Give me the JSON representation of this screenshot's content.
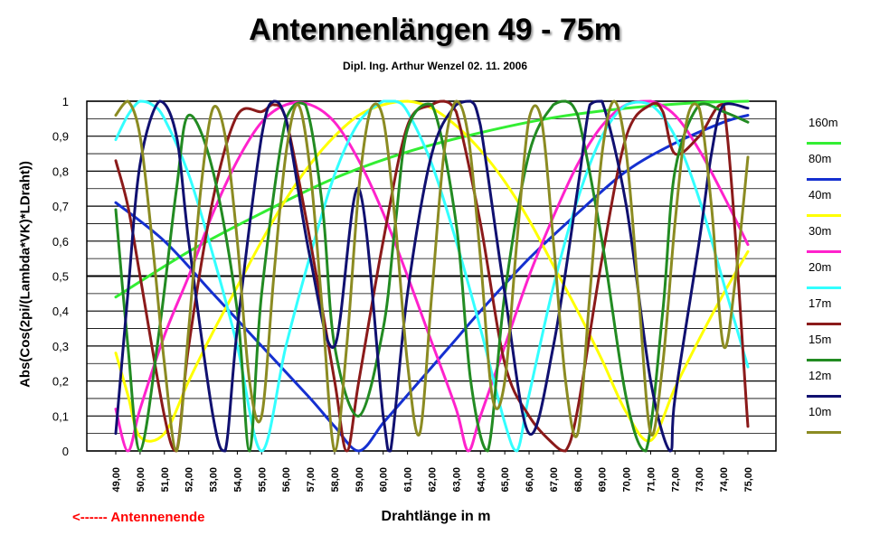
{
  "chart_data": {
    "type": "line",
    "title": "Antennenlängen 49 - 75m",
    "subtitle": "Dipl. Ing. Arthur Wenzel  02. 11. 2006",
    "xlabel": "Drahtlänge in m",
    "ylabel": "Abs(Cos(2pi/(Lambda*VK)*LDraht))",
    "note": "<------  Antennenende",
    "xlim": [
      49,
      75
    ],
    "ylim": [
      0,
      1
    ],
    "x_ticks": [
      "49,00",
      "50,00",
      "51,00",
      "52,00",
      "53,00",
      "54,00",
      "55,00",
      "56,00",
      "57,00",
      "58,00",
      "59,00",
      "60,00",
      "61,00",
      "62,00",
      "63,00",
      "64,00",
      "65,00",
      "66,00",
      "67,00",
      "68,00",
      "69,00",
      "70,00",
      "71,00",
      "72,00",
      "73,00",
      "74,00",
      "75,00"
    ],
    "y_ticks": [
      "0",
      "0,1",
      "0,2",
      "0,3",
      "0,4",
      "0,5",
      "0,6",
      "0,7",
      "0,8",
      "0,9",
      "1"
    ],
    "grid": true,
    "legend_position": "right",
    "series": [
      {
        "name": "160m",
        "color": "#33ee33",
        "x": [
          49,
          52,
          55,
          58,
          61,
          64,
          67,
          70,
          73,
          75
        ],
        "y": [
          0.44,
          0.57,
          0.68,
          0.78,
          0.855,
          0.91,
          0.953,
          0.98,
          0.996,
          1.0
        ]
      },
      {
        "name": "80m",
        "color": "#1530d0",
        "x": [
          49,
          51,
          53,
          55,
          57,
          58,
          59,
          60,
          61,
          62,
          63,
          64,
          66,
          68,
          70,
          72,
          74,
          75
        ],
        "y": [
          0.71,
          0.6,
          0.45,
          0.3,
          0.15,
          0.07,
          0.0,
          0.08,
          0.16,
          0.24,
          0.32,
          0.4,
          0.55,
          0.68,
          0.8,
          0.88,
          0.94,
          0.96
        ]
      },
      {
        "name": "40m",
        "color": "#ffff00",
        "x": [
          49,
          49.5,
          50,
          51,
          52,
          53,
          54,
          55,
          56,
          57,
          58,
          59,
          60,
          61,
          62,
          63,
          64,
          65,
          66,
          67,
          68,
          69,
          70,
          71,
          72,
          73,
          74,
          75
        ],
        "y": [
          0.28,
          0.16,
          0.04,
          0.05,
          0.2,
          0.34,
          0.47,
          0.6,
          0.72,
          0.82,
          0.9,
          0.96,
          0.99,
          1.0,
          0.98,
          0.93,
          0.86,
          0.77,
          0.66,
          0.53,
          0.4,
          0.26,
          0.11,
          0.03,
          0.18,
          0.32,
          0.45,
          0.57
        ]
      },
      {
        "name": "30m",
        "color": "#ff22cc",
        "x": [
          49,
          49.5,
          50,
          51,
          52,
          53,
          54,
          55,
          56,
          57,
          58,
          59,
          60,
          61,
          62,
          63,
          63.5,
          64,
          65,
          66,
          67,
          68,
          69,
          70,
          71,
          72,
          73,
          74,
          75
        ],
        "y": [
          0.12,
          0.0,
          0.12,
          0.33,
          0.5,
          0.68,
          0.83,
          0.94,
          0.99,
          0.99,
          0.94,
          0.83,
          0.68,
          0.5,
          0.31,
          0.12,
          0.0,
          0.1,
          0.3,
          0.5,
          0.67,
          0.82,
          0.93,
          0.99,
          1.0,
          0.96,
          0.86,
          0.73,
          0.59
        ]
      },
      {
        "name": "20m",
        "color": "#33ffff",
        "x": [
          49,
          49.5,
          50,
          50.5,
          51,
          52,
          53,
          54,
          55,
          56,
          57,
          58,
          59,
          60,
          60.5,
          61,
          62,
          63,
          64,
          65,
          65.5,
          66,
          67,
          68,
          69,
          70,
          71,
          72,
          73,
          74,
          75
        ],
        "y": [
          0.89,
          0.96,
          1.0,
          0.99,
          0.95,
          0.79,
          0.56,
          0.3,
          0.0,
          0.3,
          0.56,
          0.79,
          0.94,
          1.0,
          1.0,
          0.97,
          0.82,
          0.6,
          0.35,
          0.08,
          0.0,
          0.16,
          0.47,
          0.72,
          0.9,
          0.99,
          0.99,
          0.9,
          0.72,
          0.48,
          0.24
        ]
      },
      {
        "name": "17m",
        "color": "#8b1a1a",
        "x": [
          49,
          49.5,
          50,
          51,
          51.5,
          52,
          53,
          54,
          55,
          55.5,
          56,
          57,
          58,
          58.5,
          59,
          60,
          61,
          62,
          62.5,
          63,
          64,
          65,
          66,
          67,
          67.5,
          68,
          69,
          70,
          71,
          71.5,
          72,
          73,
          74,
          75
        ],
        "y": [
          0.83,
          0.7,
          0.5,
          0.1,
          0.0,
          0.3,
          0.72,
          0.96,
          0.97,
          0.99,
          0.95,
          0.6,
          0.2,
          0.0,
          0.2,
          0.6,
          0.93,
          0.99,
          1.0,
          0.97,
          0.65,
          0.25,
          0.1,
          0.02,
          0.0,
          0.12,
          0.55,
          0.9,
          0.99,
          0.97,
          0.85,
          0.9,
          0.99,
          0.07
        ]
      },
      {
        "name": "15m",
        "color": "#228b22",
        "x": [
          49,
          49.5,
          50,
          50.8,
          51.5,
          52,
          53,
          54,
          54.5,
          55,
          56,
          56.8,
          57.5,
          58,
          59,
          60,
          60.5,
          61,
          62,
          63,
          63.6,
          64.3,
          65,
          66,
          67,
          67.5,
          68,
          69,
          70,
          70.8,
          71.5,
          72,
          73,
          74,
          75
        ],
        "y": [
          0.69,
          0.3,
          0.0,
          0.35,
          0.75,
          0.96,
          0.8,
          0.4,
          0.0,
          0.45,
          0.95,
          0.99,
          0.7,
          0.3,
          0.1,
          0.35,
          0.65,
          0.92,
          0.99,
          0.65,
          0.2,
          0.0,
          0.45,
          0.85,
          0.99,
          1.0,
          0.96,
          0.6,
          0.15,
          0.0,
          0.4,
          0.8,
          0.99,
          0.97,
          0.94
        ]
      },
      {
        "name": "12m",
        "color": "#101070",
        "x": [
          49,
          49.5,
          50,
          50.8,
          51.5,
          52,
          53,
          53.5,
          54,
          55,
          55.5,
          56,
          57,
          58,
          59,
          60,
          60.3,
          61,
          62,
          63,
          63.6,
          64,
          65,
          66,
          67,
          68,
          68.5,
          69,
          70,
          71,
          71.8,
          72,
          73,
          73.5,
          74,
          75
        ],
        "y": [
          0.05,
          0.45,
          0.82,
          1.0,
          0.9,
          0.6,
          0.1,
          0.0,
          0.35,
          0.9,
          1.0,
          0.95,
          0.55,
          0.3,
          0.75,
          0.1,
          0.0,
          0.45,
          0.85,
          0.99,
          1.0,
          0.93,
          0.45,
          0.05,
          0.3,
          0.75,
          0.99,
          1.0,
          0.7,
          0.2,
          0.0,
          0.15,
          0.6,
          0.85,
          0.99,
          0.98
        ]
      },
      {
        "name": "10m",
        "color": "#8b8b22",
        "x": [
          49,
          49.5,
          50,
          50.5,
          51,
          51.5,
          52,
          52.5,
          53,
          53.5,
          54,
          54.5,
          55,
          55.5,
          56,
          56.5,
          57,
          57.5,
          58,
          58.5,
          59,
          59.5,
          60,
          60.5,
          61,
          61.5,
          62,
          62.5,
          63,
          63.5,
          64,
          64.5,
          65,
          65.5,
          66,
          66.5,
          67,
          67.5,
          68,
          68.5,
          69,
          69.5,
          70,
          70.5,
          71,
          71.5,
          72,
          72.5,
          73,
          73.5,
          74,
          74.5,
          75
        ],
        "y": [
          0.96,
          1.0,
          0.9,
          0.6,
          0.25,
          0.0,
          0.35,
          0.75,
          0.98,
          0.9,
          0.6,
          0.2,
          0.1,
          0.5,
          0.85,
          0.99,
          0.8,
          0.4,
          0.0,
          0.3,
          0.75,
          0.98,
          0.95,
          0.65,
          0.25,
          0.05,
          0.45,
          0.85,
          1.0,
          0.9,
          0.55,
          0.15,
          0.2,
          0.6,
          0.95,
          0.95,
          0.6,
          0.2,
          0.05,
          0.45,
          0.85,
          1.0,
          0.85,
          0.45,
          0.05,
          0.25,
          0.65,
          0.95,
          0.98,
          0.7,
          0.3,
          0.5,
          0.84
        ]
      }
    ]
  }
}
